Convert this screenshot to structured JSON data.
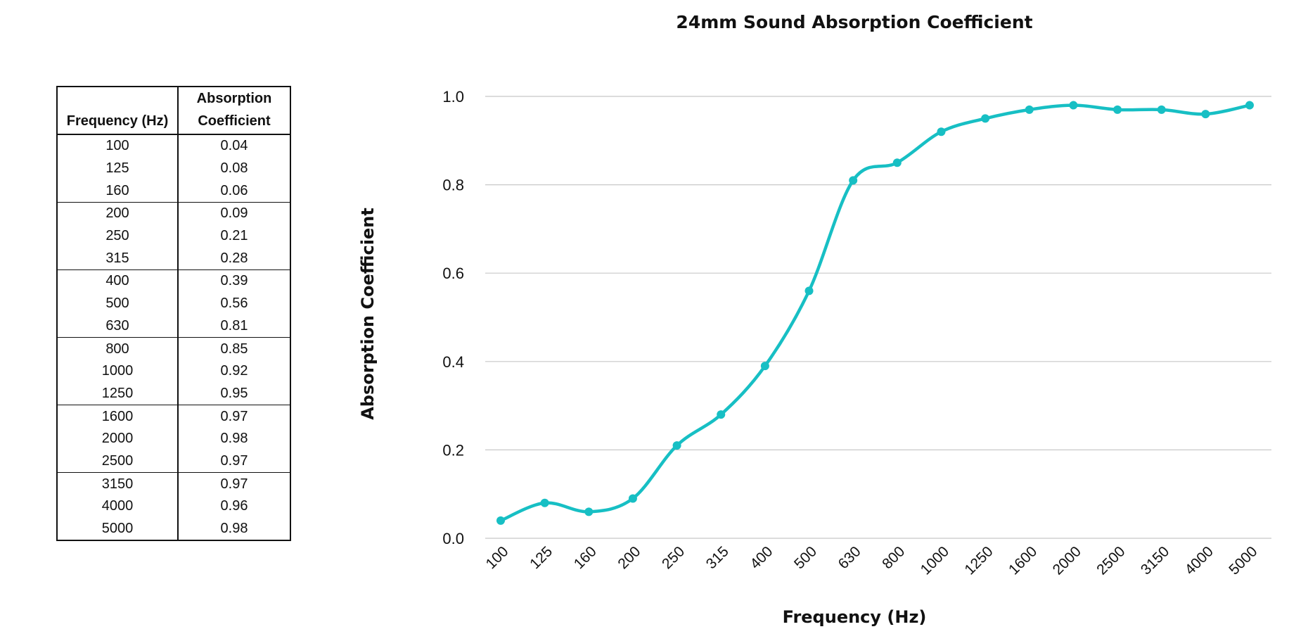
{
  "table": {
    "header_frequency": "Frequency (Hz)",
    "header_absorption_line1": "Absorption",
    "header_absorption_line2": "Coefficient",
    "rows": [
      [
        "100",
        "0.04"
      ],
      [
        "125",
        "0.08"
      ],
      [
        "160",
        "0.06"
      ],
      [
        "200",
        "0.09"
      ],
      [
        "250",
        "0.21"
      ],
      [
        "315",
        "0.28"
      ],
      [
        "400",
        "0.39"
      ],
      [
        "500",
        "0.56"
      ],
      [
        "630",
        "0.81"
      ],
      [
        "800",
        "0.85"
      ],
      [
        "1000",
        "0.92"
      ],
      [
        "1250",
        "0.95"
      ],
      [
        "1600",
        "0.97"
      ],
      [
        "2000",
        "0.98"
      ],
      [
        "2500",
        "0.97"
      ],
      [
        "3150",
        "0.97"
      ],
      [
        "4000",
        "0.96"
      ],
      [
        "5000",
        "0.98"
      ]
    ]
  },
  "chart_data": {
    "type": "line",
    "title": "24mm Sound Absorption Coefficient",
    "xlabel": "Frequency (Hz)",
    "ylabel": "Absorption Coefficient",
    "categories": [
      "100",
      "125",
      "160",
      "200",
      "250",
      "315",
      "400",
      "500",
      "630",
      "800",
      "1000",
      "1250",
      "1600",
      "2000",
      "2500",
      "3150",
      "4000",
      "5000"
    ],
    "values": [
      0.04,
      0.08,
      0.06,
      0.09,
      0.21,
      0.28,
      0.39,
      0.56,
      0.81,
      0.85,
      0.92,
      0.95,
      0.97,
      0.98,
      0.97,
      0.97,
      0.96,
      0.98
    ],
    "ylim": [
      0,
      1.0
    ],
    "yticks": [
      "0.0",
      "0.2",
      "0.4",
      "0.6",
      "0.8",
      "1.0"
    ],
    "grid": true,
    "line_color": "#17bfc4",
    "grid_color": "#c8c8c8"
  }
}
